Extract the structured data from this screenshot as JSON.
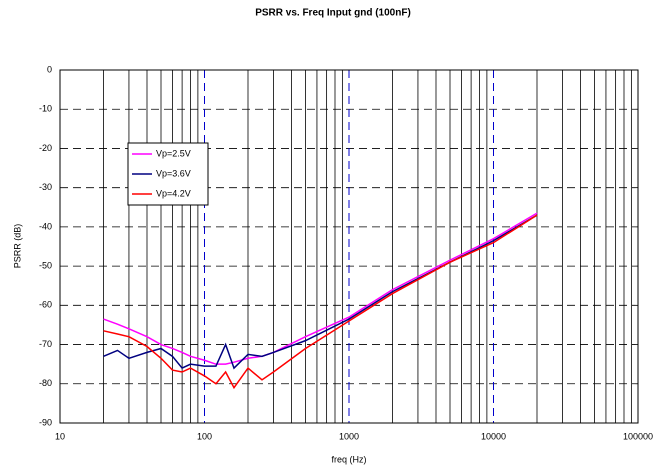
{
  "chart_data": {
    "type": "line",
    "title": "PSRR vs. Freq Input gnd (100nF)",
    "x_label": "freq (Hz)",
    "y_label": "PSRR (dB)",
    "x": [
      20,
      25,
      30,
      40,
      50,
      60,
      70,
      80,
      100,
      120,
      140,
      160,
      200,
      250,
      300,
      500,
      1000,
      2000,
      5000,
      10000,
      20000
    ],
    "series": [
      {
        "name": "Vp=2.5V",
        "color": "#ff00ff",
        "values": [
          -63.5,
          -64.8,
          -66,
          -68,
          -70,
          -71,
          -72,
          -73,
          -74,
          -75,
          -75,
          -74.5,
          -73.5,
          -73,
          -72,
          -68,
          -63,
          -56,
          -48.5,
          -43,
          -36.5
        ]
      },
      {
        "name": "Vp=3.6V",
        "color": "#000080",
        "values": [
          -73,
          -71.5,
          -73.5,
          -72,
          -71,
          -73,
          -76,
          -75,
          -75.5,
          -75.5,
          -70,
          -76,
          -72.5,
          -73,
          -72,
          -69,
          -63.5,
          -56.5,
          -49,
          -43.5,
          -37
        ]
      },
      {
        "name": "Vp=4.2V",
        "color": "#ff0000",
        "values": [
          -66.5,
          -67.3,
          -68,
          -70.5,
          -73.5,
          -76.5,
          -77,
          -76,
          -78,
          -80,
          -77,
          -81,
          -76,
          -79,
          -77,
          -71,
          -64,
          -57,
          -49,
          -44,
          -37
        ]
      }
    ],
    "xlim": [
      10,
      100000
    ],
    "xticks": [
      10,
      100,
      1000,
      10000,
      100000
    ],
    "xscale": "log",
    "ylim": [
      -90,
      0
    ],
    "yticks": [
      -90,
      -80,
      -70,
      -60,
      -50,
      -40,
      -30,
      -20,
      -10,
      0
    ],
    "grid": true,
    "legend": "upper left"
  }
}
